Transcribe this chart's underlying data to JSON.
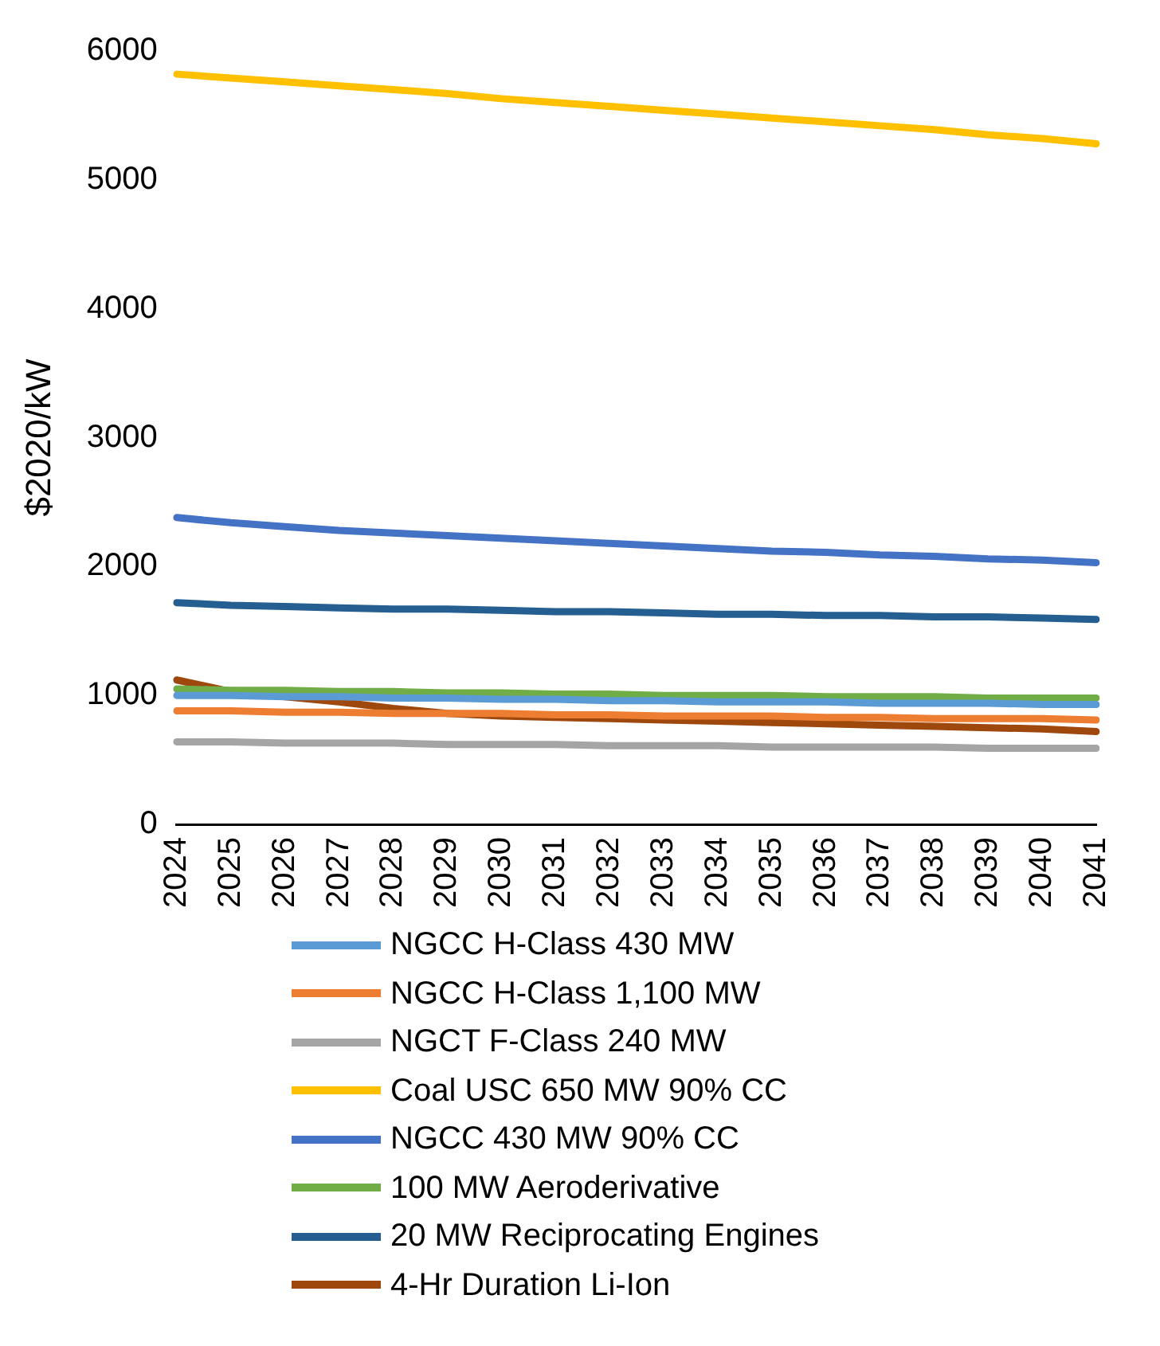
{
  "chart_data": {
    "type": "line",
    "ylabel": "$2020/kW",
    "categories": [
      "2024",
      "2025",
      "2026",
      "2027",
      "2028",
      "2029",
      "2030",
      "2031",
      "2032",
      "2033",
      "2034",
      "2035",
      "2036",
      "2037",
      "2038",
      "2039",
      "2040",
      "2041"
    ],
    "series": [
      {
        "name": "NGCC H-Class 430 MW",
        "color": "#5b9bd5",
        "values": [
          1000,
          1000,
          990,
          990,
          980,
          980,
          970,
          970,
          960,
          960,
          950,
          950,
          950,
          940,
          940,
          940,
          930,
          930
        ]
      },
      {
        "name": "NGCC H-Class 1,100 MW",
        "color": "#ed7d31",
        "values": [
          880,
          880,
          870,
          870,
          860,
          860,
          860,
          850,
          850,
          840,
          840,
          840,
          830,
          830,
          820,
          820,
          820,
          810
        ]
      },
      {
        "name": "NGCT F-Class 240 MW",
        "color": "#a5a5a5",
        "values": [
          640,
          640,
          630,
          630,
          630,
          620,
          620,
          620,
          610,
          610,
          610,
          600,
          600,
          600,
          600,
          590,
          590,
          590
        ]
      },
      {
        "name": "Coal USC 650 MW 90% CC",
        "color": "#ffc000",
        "values": [
          5820,
          5790,
          5760,
          5730,
          5700,
          5670,
          5630,
          5600,
          5570,
          5540,
          5510,
          5480,
          5450,
          5420,
          5390,
          5350,
          5320,
          5280
        ]
      },
      {
        "name": "NGCC 430 MW 90% CC",
        "color": "#4472c4",
        "values": [
          2380,
          2340,
          2310,
          2280,
          2260,
          2240,
          2220,
          2200,
          2180,
          2160,
          2140,
          2120,
          2110,
          2090,
          2080,
          2060,
          2050,
          2030
        ]
      },
      {
        "name": "100 MW Aeroderivative",
        "color": "#70ad47",
        "values": [
          1050,
          1040,
          1040,
          1030,
          1030,
          1020,
          1020,
          1010,
          1010,
          1000,
          1000,
          1000,
          990,
          990,
          990,
          980,
          980,
          980
        ]
      },
      {
        "name": "20 MW Reciprocating Engines",
        "color": "#255e91",
        "values": [
          1720,
          1700,
          1690,
          1680,
          1670,
          1670,
          1660,
          1650,
          1650,
          1640,
          1630,
          1630,
          1620,
          1620,
          1610,
          1610,
          1600,
          1590
        ]
      },
      {
        "name": "4-Hr Duration Li-Ion",
        "color": "#9e480e",
        "values": [
          1120,
          1030,
          990,
          950,
          900,
          860,
          840,
          830,
          820,
          810,
          800,
          790,
          780,
          770,
          760,
          750,
          740,
          720
        ]
      }
    ],
    "ylim": [
      0,
      6000
    ],
    "yticks": [
      0,
      1000,
      2000,
      3000,
      4000,
      5000,
      6000
    ],
    "grid": false,
    "legend": "bottom",
    "marker": "none",
    "line_style": "solid"
  }
}
